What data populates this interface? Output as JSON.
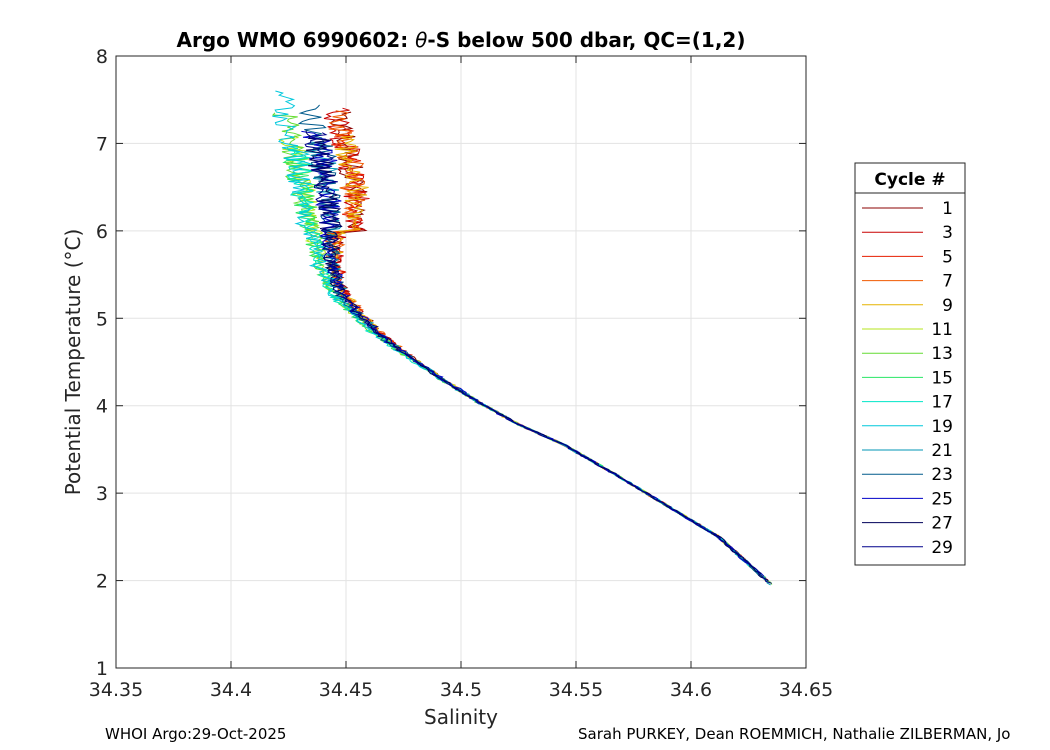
{
  "chart_data": {
    "type": "line",
    "title_prefix": "Argo WMO 6990602: ",
    "title_theta": "θ",
    "title_suffix": "-S below 500 dbar,  QC=(1,2)",
    "xlabel": "Salinity",
    "ylabel": "Potential Temperature (°C)",
    "xlim": [
      34.35,
      34.65
    ],
    "ylim": [
      1,
      8
    ],
    "xticks": [
      "34.35",
      "34.4",
      "34.45",
      "34.5",
      "34.55",
      "34.6",
      "34.65"
    ],
    "xtick_values": [
      34.35,
      34.4,
      34.45,
      34.5,
      34.55,
      34.6,
      34.65
    ],
    "yticks": [
      "1",
      "2",
      "3",
      "4",
      "5",
      "6",
      "7",
      "8"
    ],
    "ytick_values": [
      1,
      2,
      3,
      4,
      5,
      6,
      7,
      8
    ],
    "grid": true,
    "legend_title": "Cycle #",
    "legend_position": "right",
    "series": [
      {
        "name": "1",
        "color": "#8b0000"
      },
      {
        "name": "3",
        "color": "#c80000"
      },
      {
        "name": "5",
        "color": "#e61e00"
      },
      {
        "name": "7",
        "color": "#f05a00"
      },
      {
        "name": "9",
        "color": "#e6b400"
      },
      {
        "name": "11",
        "color": "#b4e61e"
      },
      {
        "name": "13",
        "color": "#64dc32"
      },
      {
        "name": "15",
        "color": "#28e664"
      },
      {
        "name": "17",
        "color": "#00e6c8"
      },
      {
        "name": "19",
        "color": "#00c8dc"
      },
      {
        "name": "21",
        "color": "#0096b4"
      },
      {
        "name": "23",
        "color": "#005a8c"
      },
      {
        "name": "25",
        "color": "#0000c8"
      },
      {
        "name": "27",
        "color": "#00005a"
      },
      {
        "name": "29",
        "color": "#00008b"
      }
    ],
    "base_curve": {
      "s": [
        34.432,
        34.437,
        34.44,
        34.441,
        34.442,
        34.443,
        34.447,
        34.455,
        34.465,
        34.478,
        34.492,
        34.507,
        34.524,
        34.545,
        34.568,
        34.59,
        34.612,
        34.635
      ],
      "t": [
        7.3,
        6.9,
        6.5,
        6.2,
        5.9,
        5.6,
        5.3,
        5.05,
        4.8,
        4.55,
        4.3,
        4.05,
        3.8,
        3.55,
        3.2,
        2.85,
        2.5,
        1.95
      ]
    },
    "footer_left": "WHOI Argo:29-Oct-2025",
    "footer_right": "Sarah PURKEY, Dean ROEMMICH, Nathalie ZILBERMAN, Jo"
  }
}
